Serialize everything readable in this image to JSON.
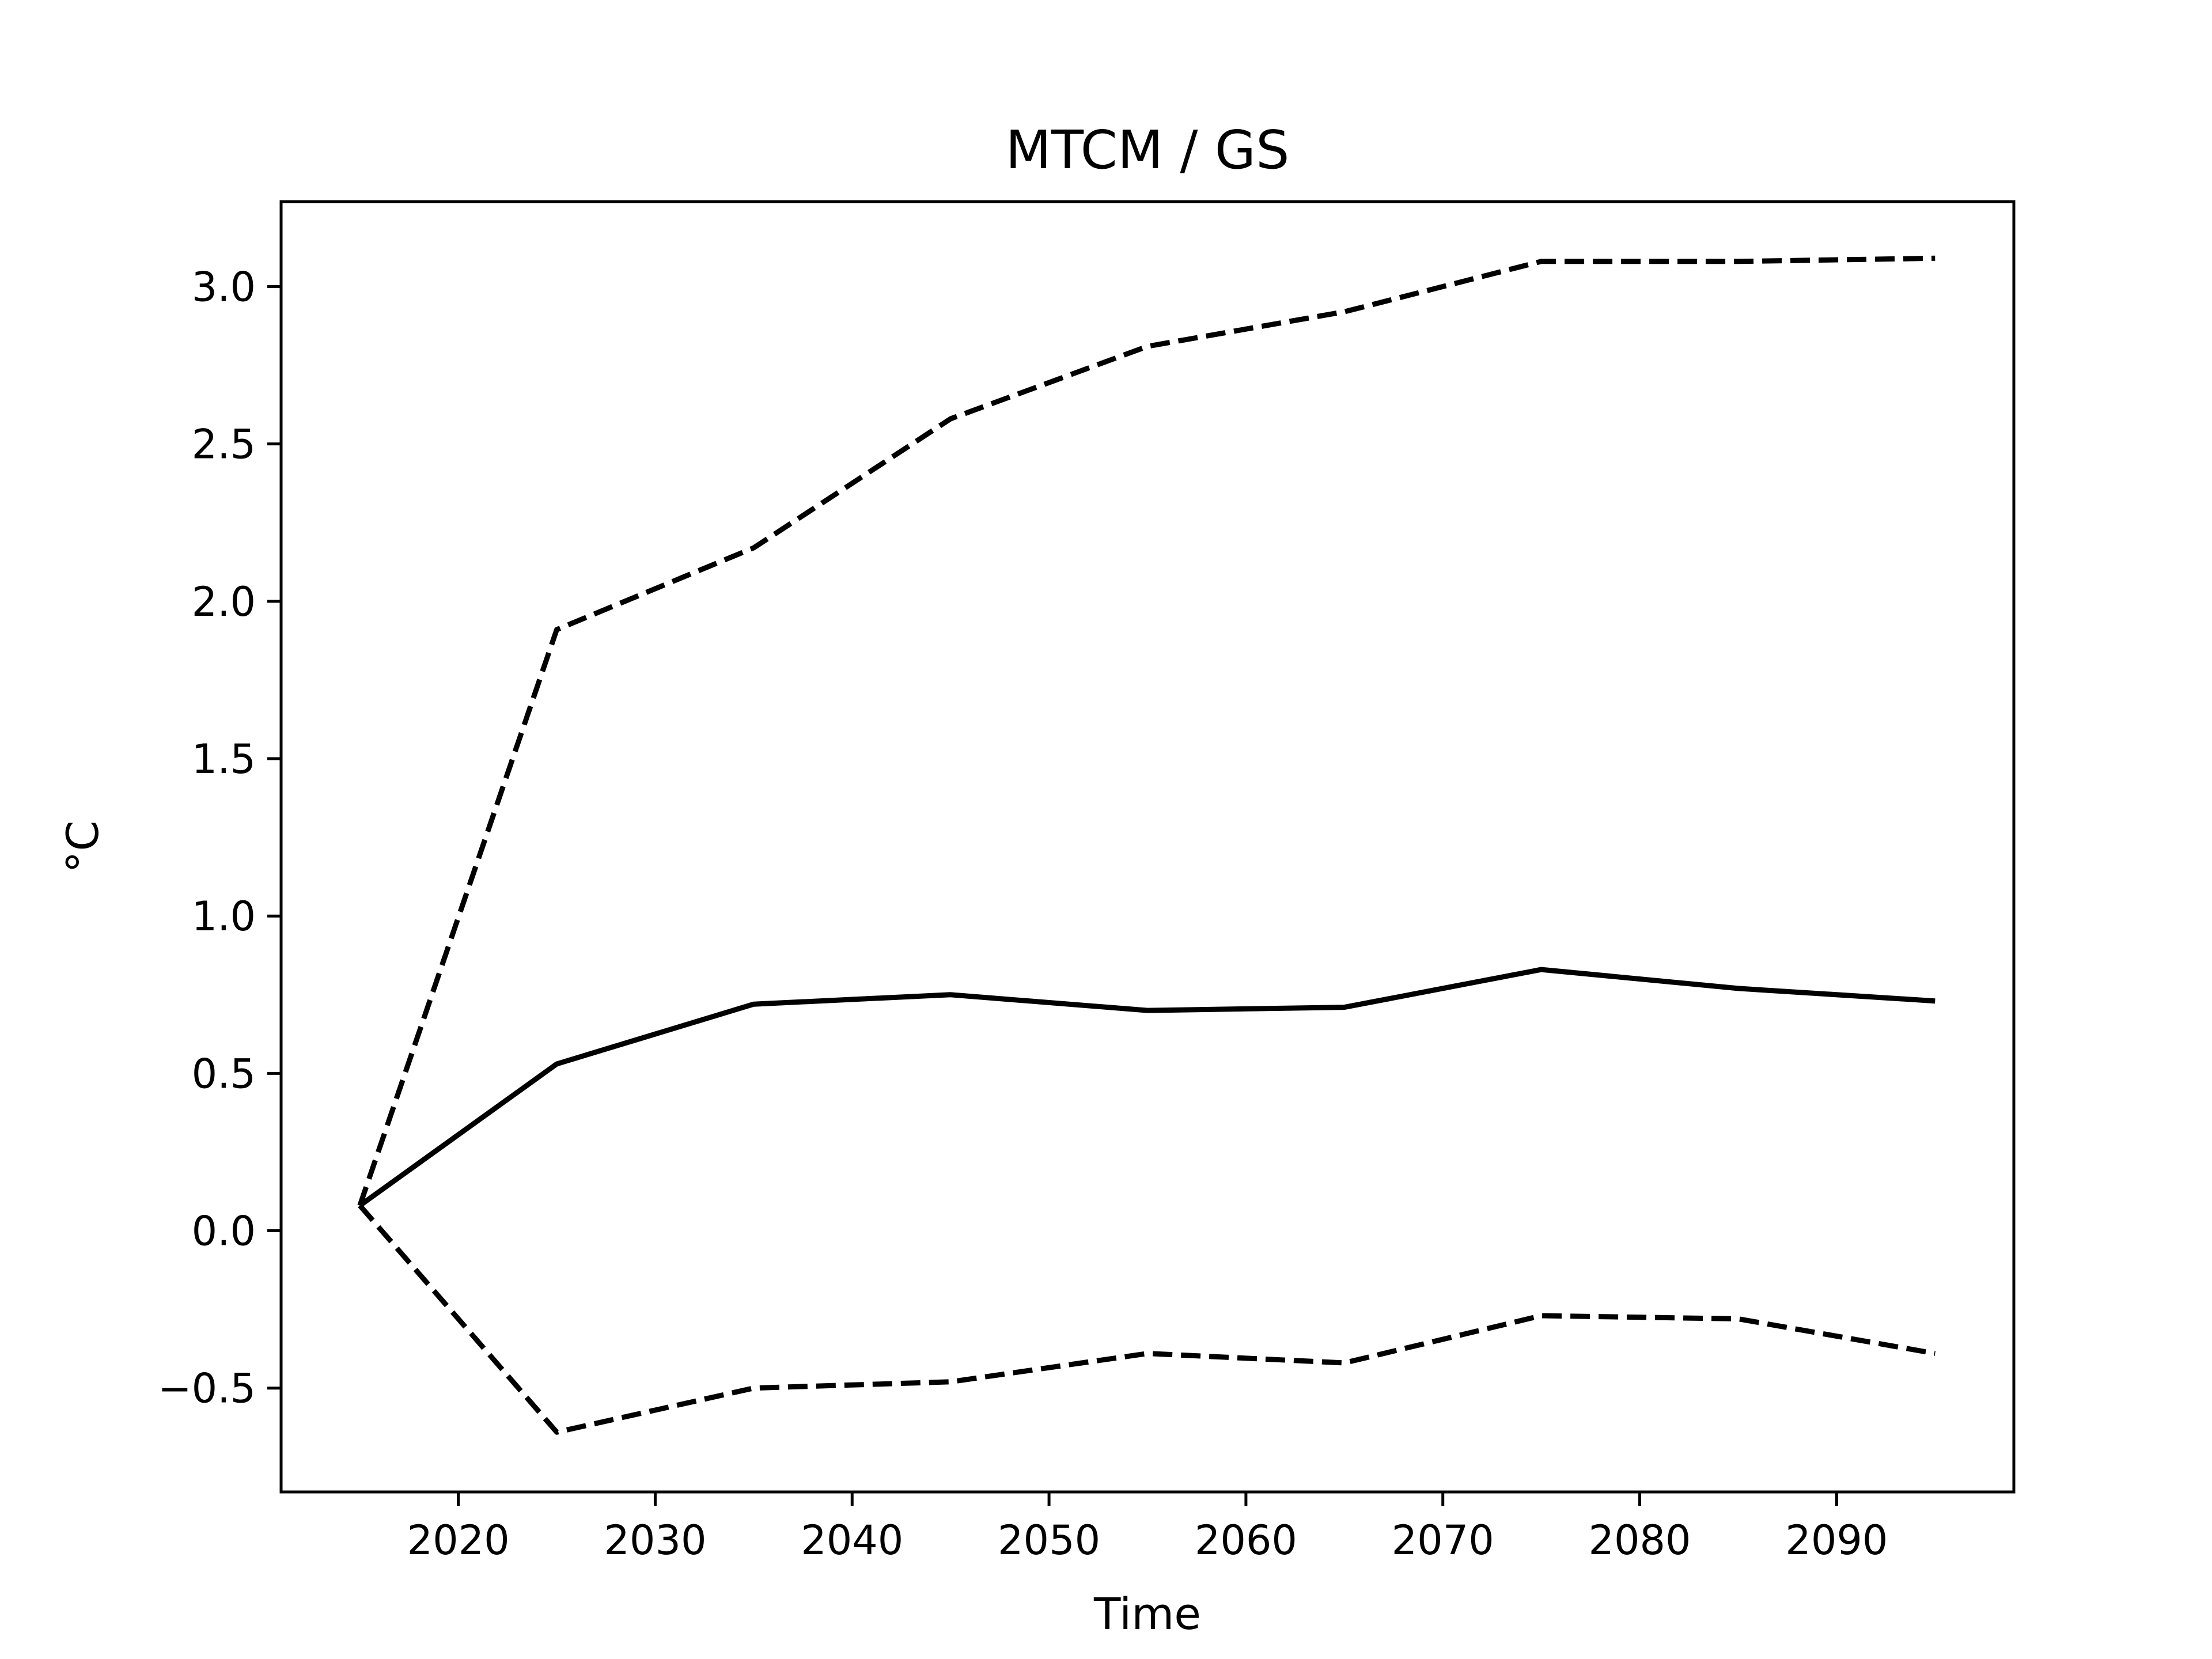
{
  "chart_data": {
    "type": "line",
    "title": "MTCM / GS",
    "xlabel": "Time",
    "ylabel": "°C",
    "xlim": [
      2011,
      2099
    ],
    "ylim": [
      -0.83,
      3.27
    ],
    "xticks": [
      2020,
      2030,
      2040,
      2050,
      2060,
      2070,
      2080,
      2090
    ],
    "yticks": [
      -0.5,
      0.0,
      0.5,
      1.0,
      1.5,
      2.0,
      2.5,
      3.0
    ],
    "ytick_labels": [
      "−0.5",
      "0.0",
      "0.5",
      "1.0",
      "1.5",
      "2.0",
      "2.5",
      "3.0"
    ],
    "grid": false,
    "legend": "none",
    "x": [
      2015,
      2025,
      2035,
      2045,
      2055,
      2065,
      2075,
      2085,
      2095
    ],
    "series": [
      {
        "style": "solid",
        "color": "#000000",
        "values": [
          0.08,
          0.53,
          0.72,
          0.75,
          0.7,
          0.71,
          0.83,
          0.77,
          0.73
        ]
      },
      {
        "style": "dashed",
        "color": "#000000",
        "values": [
          0.08,
          1.91,
          2.17,
          2.58,
          2.81,
          2.92,
          3.08,
          3.08,
          3.09
        ]
      },
      {
        "style": "dashed",
        "color": "#000000",
        "values": [
          0.08,
          -0.64,
          -0.5,
          -0.48,
          -0.39,
          -0.42,
          -0.27,
          -0.28,
          -0.39
        ]
      }
    ]
  }
}
